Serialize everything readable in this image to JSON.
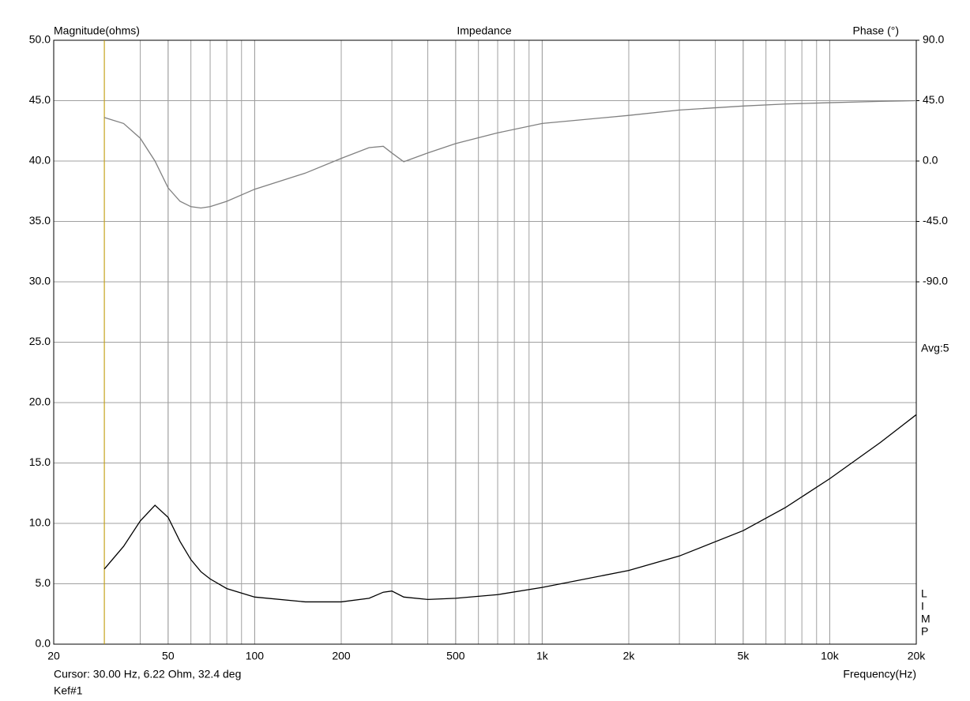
{
  "chart_data": {
    "type": "line",
    "title": "Impedance",
    "ylabel": "Magnitude(ohms)",
    "y2label": "Phase (°)",
    "xlabel": "Frequency(Hz)",
    "annotations": [
      "Avg:5",
      "L",
      "I",
      "M",
      "P"
    ],
    "cursor": {
      "label": "Cursor: 30.00 Hz, 6.22 Ohm, 32.4 deg",
      "x": 30,
      "color": "#c8a000"
    },
    "file_label": "Kef#1",
    "log_x": true,
    "grid": true,
    "xlim": [
      20,
      20000
    ],
    "xticks": [
      20,
      50,
      100,
      200,
      500,
      {
        "value": 1000,
        "label": "1k"
      },
      {
        "value": 2000,
        "label": "2k"
      },
      {
        "value": 5000,
        "label": "5k"
      },
      {
        "value": 10000,
        "label": "10k"
      },
      {
        "value": 20000,
        "label": "20k"
      }
    ],
    "ylim": [
      0,
      50
    ],
    "yticks": [
      {
        "value": 0,
        "label": "0.0"
      },
      {
        "value": 5,
        "label": "5.0"
      },
      {
        "value": 10,
        "label": "10.0"
      },
      {
        "value": 15,
        "label": "15.0"
      },
      {
        "value": 20,
        "label": "20.0"
      },
      {
        "value": 25,
        "label": "25.0"
      },
      {
        "value": 30,
        "label": "30.0"
      },
      {
        "value": 35,
        "label": "35.0"
      },
      {
        "value": 40,
        "label": "40.0"
      },
      {
        "value": 45,
        "label": "45.0"
      },
      {
        "value": 50,
        "label": "50.0"
      }
    ],
    "y2lim": [
      -360,
      90
    ],
    "y2ticks": [
      {
        "value": -90,
        "label": "-90.0"
      },
      {
        "value": -45,
        "label": "-45.0"
      },
      {
        "value": 0,
        "label": "0.0"
      },
      {
        "value": 45,
        "label": "45.0"
      },
      {
        "value": 90,
        "label": "90.0"
      }
    ],
    "x": [
      30,
      35,
      40,
      45,
      50,
      55,
      60,
      65,
      70,
      80,
      100,
      150,
      200,
      250,
      280,
      300,
      330,
      400,
      500,
      700,
      1000,
      2000,
      3000,
      5000,
      7000,
      10000,
      15000,
      20000
    ],
    "series": [
      {
        "color": "#000000",
        "values": [
          6.22,
          8.1,
          10.2,
          11.5,
          10.5,
          8.5,
          7.0,
          6.0,
          5.4,
          4.6,
          3.9,
          3.5,
          3.5,
          3.8,
          4.3,
          4.4,
          3.9,
          3.7,
          3.8,
          4.1,
          4.7,
          6.1,
          7.3,
          9.4,
          11.3,
          13.7,
          16.7,
          19.0
        ]
      },
      {
        "color": "#808080",
        "axis": "y2",
        "values": [
          32.4,
          28,
          17,
          0,
          -20,
          -30,
          -34,
          -35,
          -34,
          -30,
          -21,
          -9,
          2,
          10,
          11,
          6,
          -0.5,
          6,
          13,
          21,
          28,
          34,
          38,
          41,
          42.5,
          43.5,
          44.5,
          45
        ]
      }
    ]
  }
}
